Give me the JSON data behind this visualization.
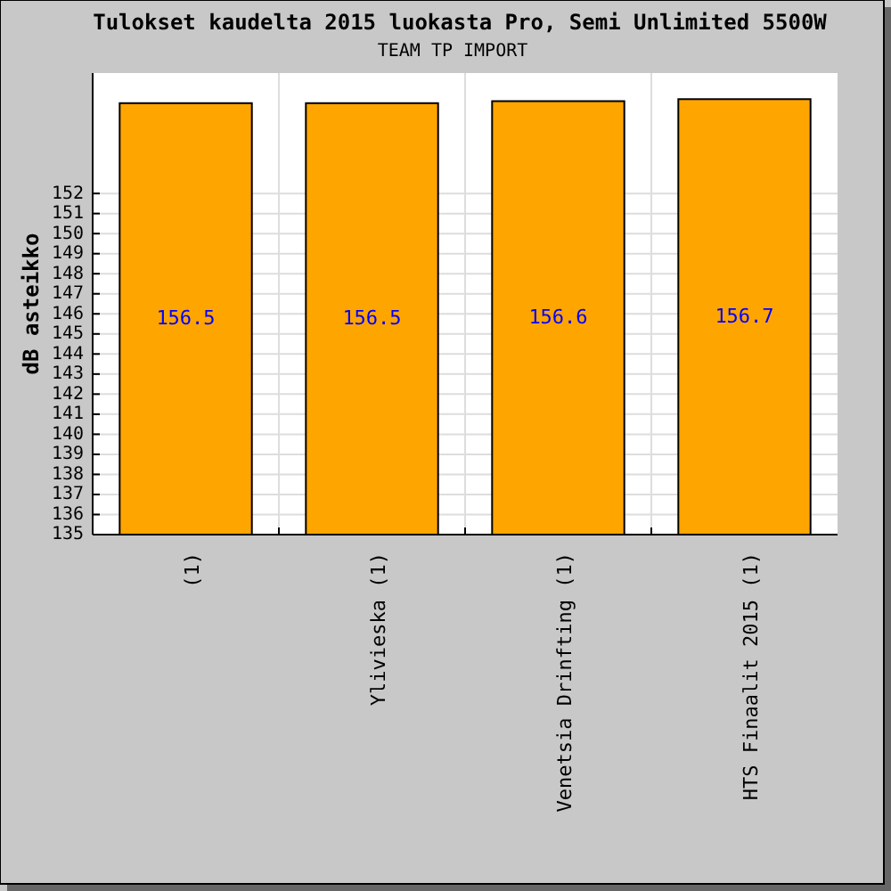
{
  "chart_data": {
    "type": "bar",
    "title": "Tulokset kaudelta 2015 luokasta Pro, Semi Unlimited 5500W",
    "subtitle": "TEAM TP IMPORT",
    "ylabel": "dB asteikko",
    "categories": [
      "(1)",
      "Ylivieska (1)",
      "Venetsia Drinfting (1)",
      "HTS Finaalit 2015 (1)"
    ],
    "values": [
      156.5,
      156.5,
      156.6,
      156.7
    ],
    "color": "#ffa500",
    "data_labels": true,
    "ylim": [
      135,
      158
    ],
    "yticks": [
      135,
      136,
      137,
      138,
      139,
      140,
      141,
      142,
      143,
      144,
      145,
      146,
      147,
      148,
      149,
      150,
      151,
      152
    ],
    "grid": true
  }
}
